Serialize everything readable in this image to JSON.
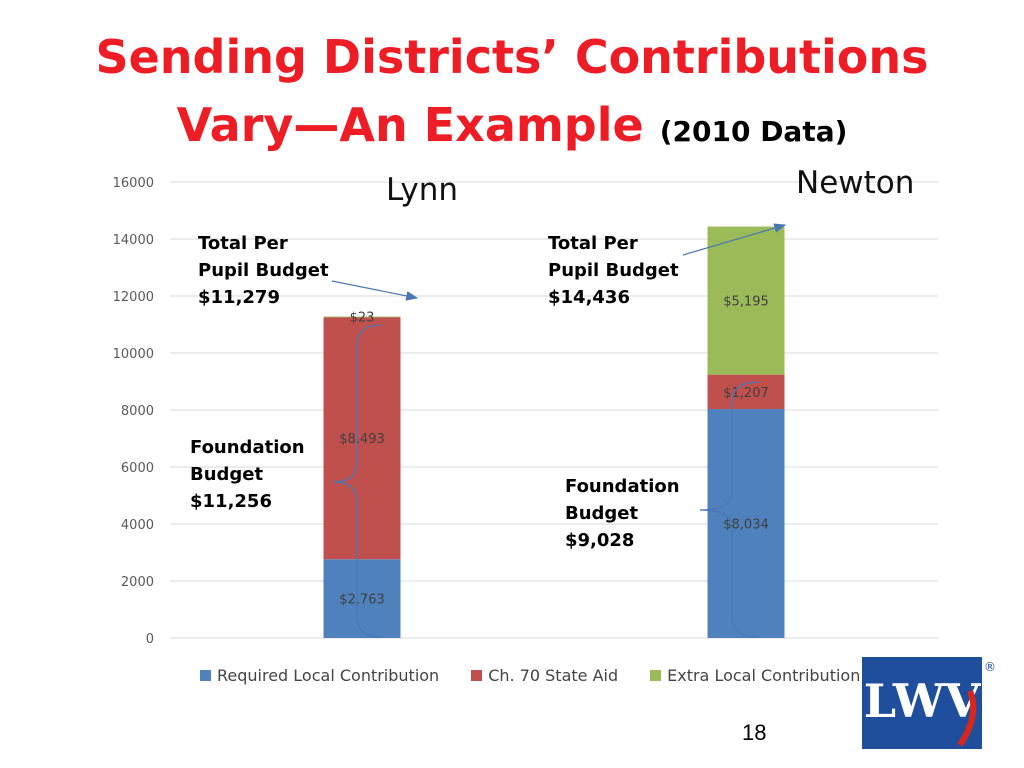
{
  "slide": {
    "title_line1": "Sending Districts’ Contributions",
    "title_line2": "Vary—An Example",
    "title_suffix": "(2010 Data)",
    "page_number": "18"
  },
  "chart_data": {
    "type": "bar",
    "stacked": true,
    "categories": [
      "Lynn",
      "Newton"
    ],
    "series": [
      {
        "name": "Required Local Contribution",
        "values": [
          2763,
          8034
        ],
        "labels": [
          "$2,763",
          "$8,034"
        ],
        "color": "#4f81bd"
      },
      {
        "name": "Ch. 70 State Aid",
        "values": [
          8493,
          1207
        ],
        "labels": [
          "$8,493",
          "$1,207"
        ],
        "color": "#c0504d"
      },
      {
        "name": "Extra Local Contribution",
        "values": [
          23,
          5195
        ],
        "labels": [
          "$23",
          "$5,195"
        ],
        "color": "#9bbb59"
      }
    ],
    "ylim": [
      0,
      16000
    ],
    "yticks": [
      "0",
      "2000",
      "4000",
      "6000",
      "8000",
      "10000",
      "12000",
      "14000",
      "16000"
    ],
    "grid": true,
    "legend_position": "bottom",
    "annotations": {
      "lynn_total": [
        "Total Per",
        "Pupil Budget",
        "$11,279"
      ],
      "newton_total": [
        "Total Per",
        "Pupil Budget",
        "$14,436"
      ],
      "lynn_foundation": [
        "Foundation",
        "Budget",
        "$11,256"
      ],
      "newton_foundation": [
        "Foundation",
        "Budget",
        "$9,028"
      ]
    }
  },
  "logo": {
    "text": "LWV",
    "mark": "®",
    "color": "#1f4e9c",
    "accent": "#d9261c"
  }
}
